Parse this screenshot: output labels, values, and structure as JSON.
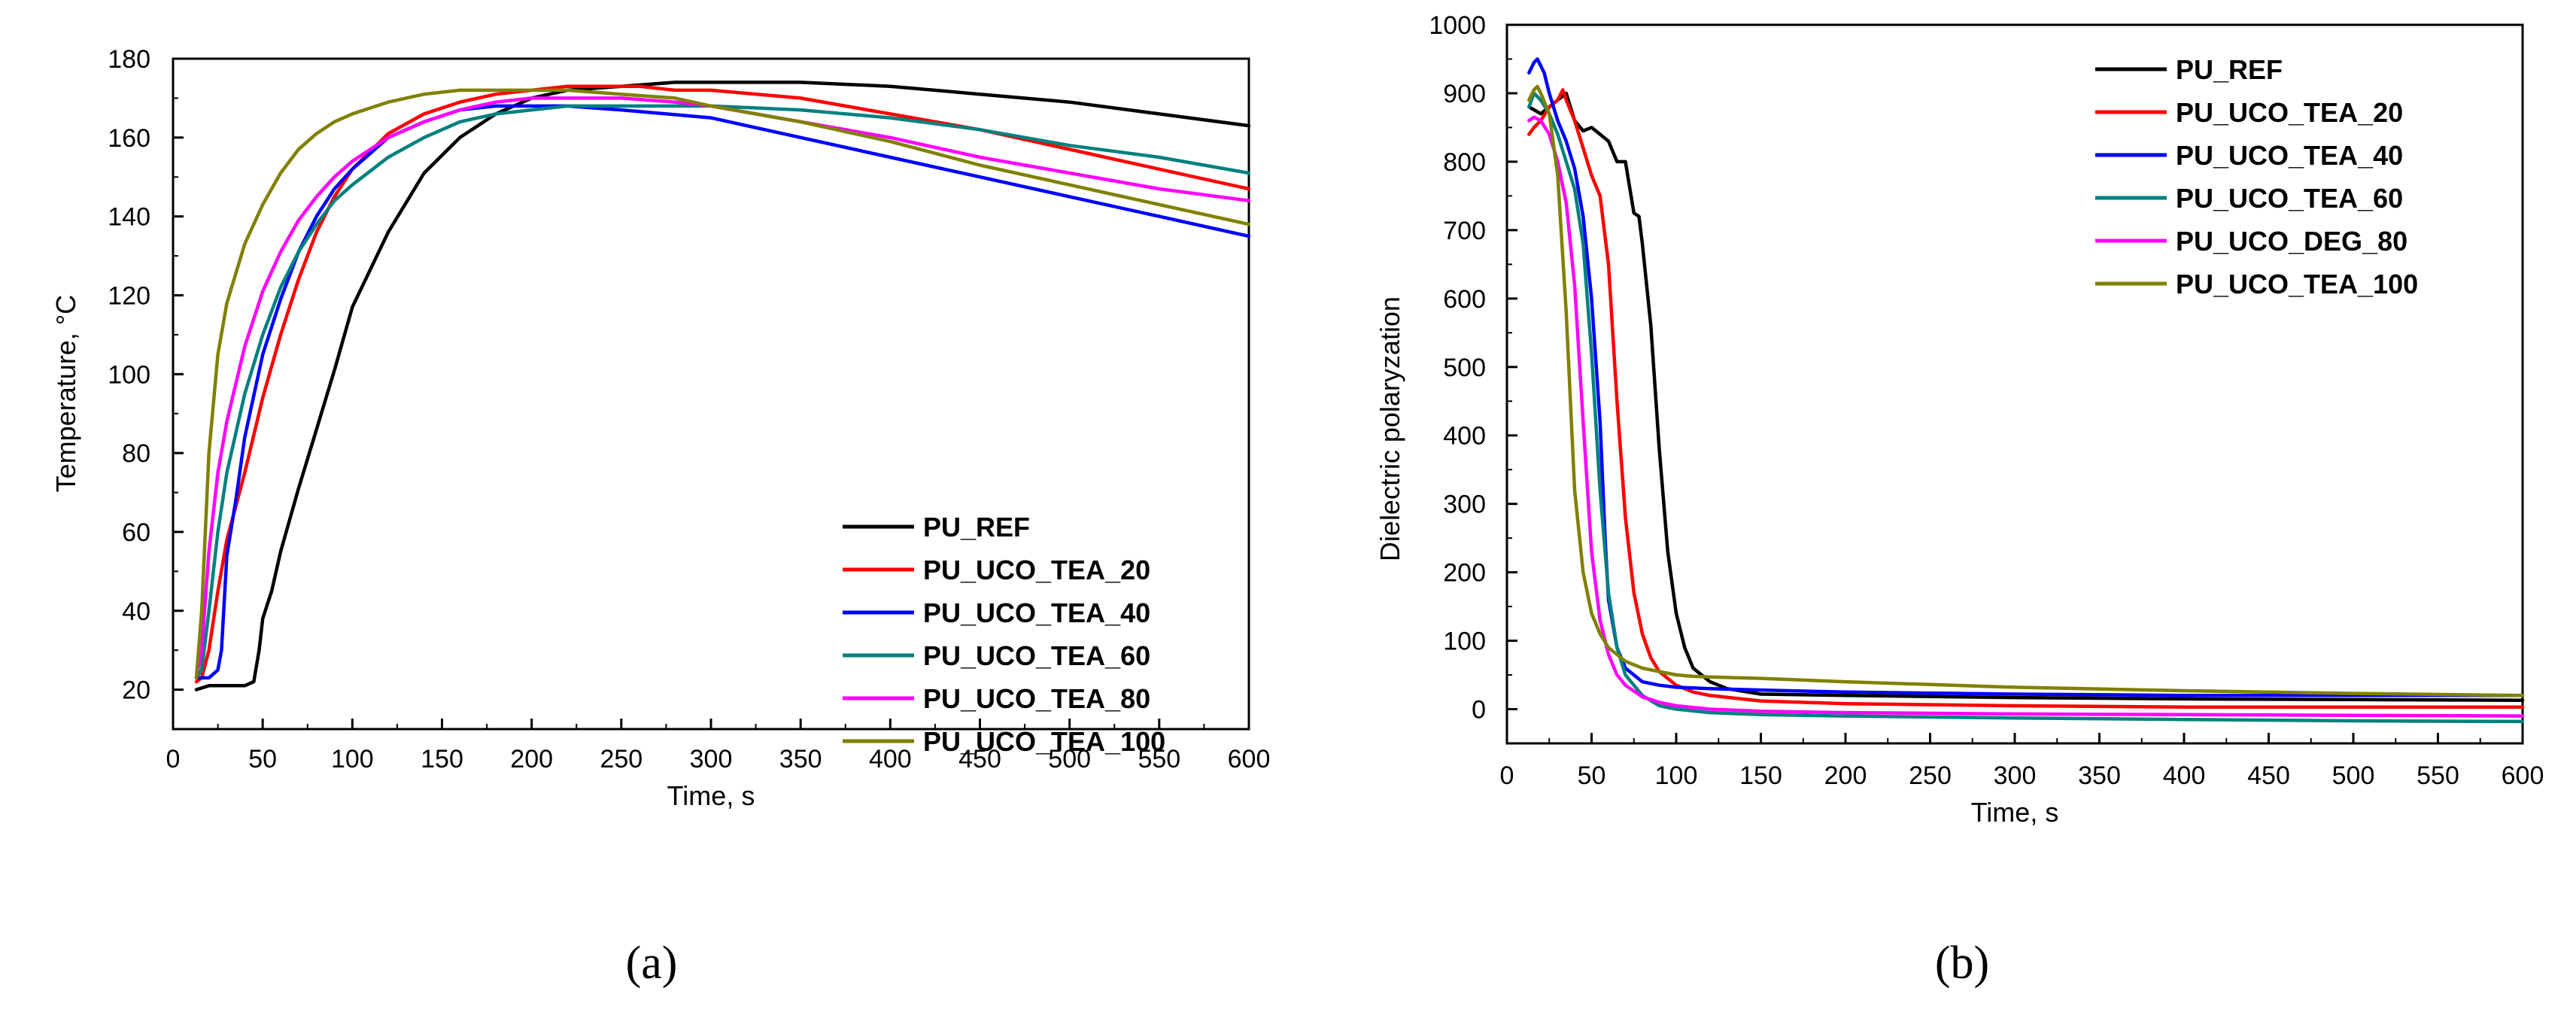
{
  "chart_data": [
    {
      "type": "line",
      "panel_label": "(a)",
      "xlabel": "Time, s",
      "ylabel": "Temperature, °C",
      "xlim": [
        0,
        600
      ],
      "ylim": [
        10,
        180
      ],
      "xticks": [
        "0",
        "50",
        "100",
        "150",
        "200",
        "250",
        "300",
        "350",
        "400",
        "450",
        "500",
        "550",
        "600"
      ],
      "yticks": [
        "20",
        "40",
        "60",
        "80",
        "100",
        "120",
        "140",
        "160",
        "180"
      ],
      "legend_position": "bottom-right",
      "series": [
        {
          "name": "PU_REF",
          "color": "#000000",
          "x": [
            13,
            20,
            30,
            40,
            45,
            48,
            50,
            55,
            60,
            70,
            80,
            90,
            100,
            120,
            140,
            160,
            180,
            200,
            220,
            250,
            280,
            300,
            350,
            400,
            450,
            500,
            550,
            600
          ],
          "y": [
            20,
            21,
            21,
            21,
            22,
            30,
            38,
            45,
            55,
            71,
            86,
            101,
            117,
            136,
            151,
            160,
            166,
            170,
            172,
            173,
            174,
            174,
            174,
            173,
            171,
            169,
            166,
            163
          ]
        },
        {
          "name": "PU_UCO_TEA_20",
          "color": "#ff0000",
          "x": [
            13,
            16,
            20,
            25,
            30,
            40,
            50,
            60,
            70,
            80,
            90,
            100,
            120,
            140,
            160,
            180,
            200,
            220,
            240,
            260,
            280,
            300,
            350,
            400,
            450,
            500,
            550,
            600
          ],
          "y": [
            22,
            23,
            30,
            45,
            58,
            75,
            94,
            110,
            124,
            136,
            145,
            152,
            161,
            166,
            169,
            171,
            172,
            173,
            173,
            173,
            172,
            172,
            170,
            166,
            162,
            157,
            152,
            147
          ]
        },
        {
          "name": "PU_UCO_TEA_40",
          "color": "#0000ff",
          "x": [
            13,
            16,
            20,
            25,
            27,
            30,
            35,
            40,
            50,
            60,
            70,
            80,
            90,
            100,
            120,
            140,
            160,
            180,
            200,
            220,
            250,
            300,
            350,
            400,
            450,
            500,
            550,
            600
          ],
          "y": [
            23,
            23,
            23,
            25,
            30,
            54,
            68,
            84,
            105,
            119,
            131,
            140,
            147,
            152,
            160,
            164,
            167,
            168,
            168,
            168,
            167,
            165,
            160,
            155,
            150,
            145,
            140,
            135
          ]
        },
        {
          "name": "PU_UCO_TEA_60",
          "color": "#008080",
          "x": [
            13,
            16,
            20,
            25,
            30,
            40,
            50,
            60,
            70,
            80,
            90,
            100,
            120,
            140,
            160,
            180,
            200,
            220,
            250,
            280,
            300,
            350,
            400,
            450,
            500,
            550,
            600
          ],
          "y": [
            23,
            25,
            40,
            60,
            75,
            95,
            110,
            122,
            131,
            138,
            144,
            148,
            155,
            160,
            164,
            166,
            167,
            168,
            168,
            168,
            168,
            167,
            165,
            162,
            158,
            155,
            151
          ]
        },
        {
          "name": "PU_UCO_TEA_80",
          "color": "#ff00ff",
          "x": [
            13,
            16,
            20,
            25,
            30,
            40,
            50,
            60,
            70,
            80,
            90,
            100,
            120,
            140,
            160,
            180,
            200,
            220,
            250,
            280,
            300,
            350,
            400,
            450,
            500,
            550,
            600
          ],
          "y": [
            23,
            30,
            55,
            75,
            88,
            107,
            121,
            131,
            139,
            145,
            150,
            154,
            160,
            164,
            167,
            169,
            170,
            170,
            170,
            169,
            168,
            164,
            160,
            155,
            151,
            147,
            144
          ]
        },
        {
          "name": "PU_UCO_TEA_100",
          "color": "#808000",
          "x": [
            13,
            16,
            20,
            25,
            30,
            40,
            50,
            60,
            70,
            80,
            90,
            100,
            120,
            140,
            160,
            180,
            200,
            220,
            250,
            280,
            300,
            350,
            400,
            450,
            500,
            550,
            600
          ],
          "y": [
            23,
            40,
            80,
            105,
            118,
            133,
            143,
            151,
            157,
            161,
            164,
            166,
            169,
            171,
            172,
            172,
            172,
            172,
            171,
            170,
            168,
            164,
            159,
            153,
            148,
            143,
            138
          ]
        }
      ]
    },
    {
      "type": "line",
      "panel_label": "(b)",
      "xlabel": "Time, s",
      "ylabel": "Dielectric polaryzation",
      "xlim": [
        0,
        600
      ],
      "ylim": [
        -50,
        1000
      ],
      "xticks": [
        "0",
        "50",
        "100",
        "150",
        "200",
        "250",
        "300",
        "350",
        "400",
        "450",
        "500",
        "550",
        "600"
      ],
      "yticks": [
        "0",
        "100",
        "200",
        "300",
        "400",
        "500",
        "600",
        "700",
        "800",
        "900",
        "1000"
      ],
      "legend_position": "top-right",
      "series": [
        {
          "name": "PU_REF",
          "color": "#000000",
          "x": [
            13,
            20,
            25,
            30,
            35,
            40,
            45,
            50,
            55,
            60,
            65,
            70,
            72,
            75,
            78,
            80,
            85,
            90,
            95,
            100,
            105,
            110,
            120,
            130,
            150,
            200,
            300,
            400,
            500,
            600
          ],
          "y": [
            880,
            870,
            880,
            890,
            900,
            860,
            845,
            850,
            840,
            830,
            800,
            800,
            770,
            725,
            720,
            680,
            560,
            380,
            230,
            140,
            90,
            60,
            40,
            30,
            22,
            20,
            17,
            15,
            14,
            13
          ]
        },
        {
          "name": "PU_UCO_TEA_20",
          "color": "#ff0000",
          "x": [
            13,
            16,
            20,
            25,
            30,
            33,
            35,
            40,
            45,
            50,
            55,
            60,
            65,
            70,
            75,
            80,
            85,
            90,
            100,
            110,
            120,
            150,
            200,
            300,
            400,
            500,
            600
          ],
          "y": [
            840,
            850,
            860,
            880,
            890,
            905,
            890,
            860,
            820,
            780,
            750,
            650,
            450,
            280,
            170,
            110,
            75,
            55,
            35,
            25,
            20,
            12,
            8,
            5,
            3,
            3,
            3
          ]
        },
        {
          "name": "PU_UCO_TEA_40",
          "color": "#0000ff",
          "x": [
            13,
            16,
            18,
            20,
            22,
            25,
            30,
            35,
            40,
            45,
            50,
            55,
            58,
            60,
            65,
            70,
            80,
            90,
            100,
            120,
            150,
            200,
            300,
            400,
            500,
            600
          ],
          "y": [
            930,
            945,
            950,
            940,
            930,
            900,
            860,
            830,
            790,
            720,
            600,
            420,
            250,
            160,
            90,
            60,
            40,
            35,
            32,
            30,
            28,
            25,
            22,
            20,
            20,
            20
          ]
        },
        {
          "name": "PU_UCO_TEA_60",
          "color": "#008080",
          "x": [
            13,
            16,
            20,
            25,
            30,
            35,
            40,
            45,
            50,
            55,
            60,
            65,
            70,
            80,
            90,
            100,
            120,
            150,
            200,
            300,
            400,
            500,
            600
          ],
          "y": [
            880,
            900,
            890,
            870,
            840,
            800,
            760,
            680,
            520,
            320,
            170,
            90,
            50,
            20,
            5,
            0,
            -5,
            -8,
            -10,
            -13,
            -15,
            -17,
            -18
          ]
        },
        {
          "name": "PU_UCO_DEG_80",
          "color": "#ff00ff",
          "x": [
            13,
            16,
            20,
            25,
            30,
            35,
            40,
            45,
            50,
            55,
            60,
            65,
            70,
            80,
            90,
            100,
            120,
            150,
            200,
            300,
            400,
            500,
            600
          ],
          "y": [
            860,
            865,
            860,
            840,
            800,
            740,
            620,
            420,
            230,
            130,
            80,
            50,
            35,
            18,
            10,
            5,
            0,
            -3,
            -5,
            -7,
            -8,
            -9,
            -10
          ]
        },
        {
          "name": "PU_UCO_TEA_100",
          "color": "#808000",
          "x": [
            13,
            16,
            18,
            20,
            25,
            30,
            35,
            40,
            45,
            50,
            55,
            60,
            70,
            80,
            90,
            100,
            110,
            120,
            150,
            200,
            300,
            400,
            500,
            600
          ],
          "y": [
            890,
            905,
            910,
            900,
            870,
            780,
            580,
            320,
            200,
            140,
            110,
            90,
            70,
            60,
            55,
            50,
            48,
            47,
            45,
            40,
            32,
            27,
            23,
            20
          ]
        }
      ]
    }
  ]
}
